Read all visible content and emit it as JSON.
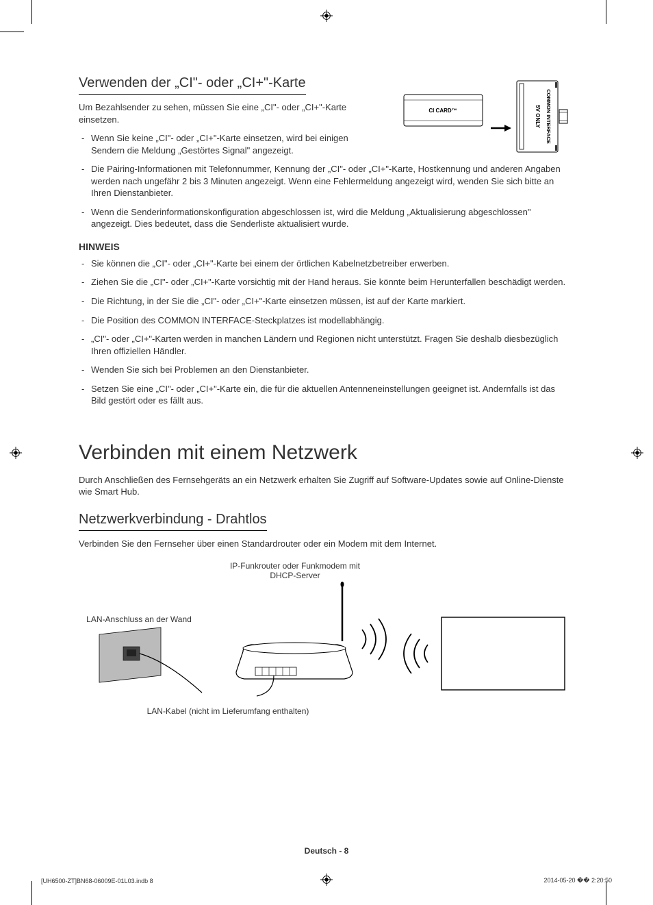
{
  "section1": {
    "title": "Verwenden der „CI\"- oder „CI+\"-Karte",
    "intro": "Um Bezahlsender zu sehen, müssen Sie eine „CI\"- oder „CI+\"-Karte einsetzen.",
    "bullets": [
      "Wenn Sie keine „CI\"- oder „CI+\"-Karte einsetzen, wird bei einigen Sendern die Meldung „Gestörtes Signal\" angezeigt.",
      "Die Pairing-Informationen mit Telefonnummer, Kennung der „CI\"- oder „CI+\"-Karte, Hostkennung und anderen Angaben werden nach ungefähr 2 bis 3 Minuten angezeigt. Wenn eine Fehlermeldung angezeigt wird, wenden Sie sich bitte an Ihren Dienstanbieter.",
      "Wenn die Senderinformationskonfiguration abgeschlossen ist, wird die Meldung „Aktualisierung abgeschlossen\" angezeigt. Dies bedeutet, dass die Senderliste aktualisiert wurde."
    ],
    "hinweis_label": "HINWEIS",
    "hinweis_bullets": [
      "Sie können die „CI\"- oder „CI+\"-Karte bei einem der örtlichen Kabelnetzbetreiber erwerben.",
      "Ziehen Sie die „CI\"- oder „CI+\"-Karte vorsichtig mit der Hand heraus. Sie könnte beim Herunterfallen beschädigt werden.",
      "Die Richtung, in der Sie die „CI\"- oder „CI+\"-Karte einsetzen müssen, ist auf der Karte markiert.",
      "Die Position des COMMON INTERFACE-Steckplatzes ist modellabhängig.",
      "„CI\"- oder „CI+\"-Karten werden in manchen Ländern und Regionen nicht unterstützt. Fragen Sie deshalb diesbezüglich Ihren offiziellen Händler.",
      "Wenden Sie sich bei Problemen an den Dienstanbieter.",
      "Setzen Sie eine „CI\"- oder „CI+\"-Karte ein, die für die aktuellen Antenneneinstellungen geeignet ist. Andernfalls ist das Bild gestört oder es fällt aus."
    ]
  },
  "ci_card_diagram": {
    "card_label": "CI CARD™",
    "slot_label_1": "5V ONLY",
    "slot_label_2": "COMMON INTERFACE"
  },
  "main_title": "Verbinden mit einem Netzwerk",
  "main_intro": "Durch Anschließen des Fernsehgeräts an ein Netzwerk erhalten Sie Zugriff auf Software-Updates sowie auf Online-Dienste wie Smart Hub.",
  "section2": {
    "title": "Netzwerkverbindung - Drahtlos",
    "intro": "Verbinden Sie den Fernseher über einen Standardrouter oder ein Modem mit dem Internet."
  },
  "router_diagram": {
    "router_label": "IP-Funkrouter oder Funkmodem mit DHCP-Server",
    "wall_label": "LAN-Anschluss an der Wand",
    "cable_label": "LAN-Kabel (nicht im Lieferumfang enthalten)"
  },
  "footer": {
    "page": "Deutsch - 8",
    "left": "[UH6500-ZT]BN68-06009E-01L03.indb   8",
    "right": "2014-05-20   �� 2:20:50"
  },
  "colors": {
    "text": "#333333",
    "line": "#000000",
    "bg": "#ffffff",
    "gray": "#b0b0b0"
  }
}
